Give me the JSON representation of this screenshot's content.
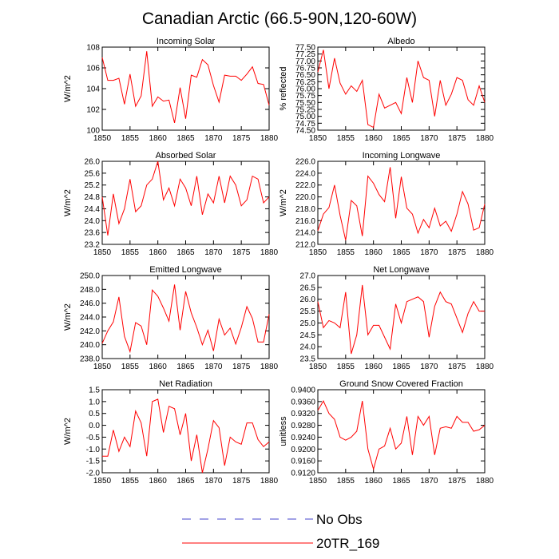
{
  "chart_data": {
    "type": "line",
    "title": "Canadian Arctic (66.5-90N,120-60W)",
    "x_start": 1850,
    "legend": [
      {
        "name": "No Obs",
        "color": "#4444cc",
        "style": "dashed"
      },
      {
        "name": "20TR_169",
        "color": "#ff0000",
        "style": "solid"
      }
    ],
    "panels": [
      {
        "title": "Incoming Solar",
        "ylabel": "W/m^2",
        "ylim": [
          100,
          108
        ],
        "yticks": [
          "100",
          "102",
          "104",
          "106",
          "108"
        ],
        "xlim": [
          1850,
          1880
        ],
        "xticks": [
          "1850",
          "1855",
          "1860",
          "1865",
          "1870",
          "1875",
          "1880"
        ],
        "values": [
          107.0,
          104.8,
          104.8,
          105.0,
          102.5,
          105.4,
          102.3,
          103.3,
          107.6,
          102.3,
          103.2,
          102.8,
          102.9,
          100.7,
          104.1,
          101.1,
          105.3,
          105.1,
          106.8,
          106.3,
          104.3,
          102.7,
          105.3,
          105.2,
          105.2,
          104.8,
          105.4,
          106.1,
          104.5,
          104.4,
          102.4
        ]
      },
      {
        "title": "Albedo",
        "ylabel": "% reflected",
        "ylim": [
          74.5,
          77.5
        ],
        "yticks": [
          "74.50",
          "74.75",
          "75.00",
          "75.25",
          "75.50",
          "75.75",
          "76.00",
          "76.25",
          "76.50",
          "76.75",
          "77.00",
          "77.25",
          "77.50"
        ],
        "xlim": [
          1850,
          1880
        ],
        "xticks": [
          "1850",
          "1855",
          "1860",
          "1865",
          "1870",
          "1875",
          "1880"
        ],
        "values": [
          76.6,
          77.4,
          76.0,
          77.1,
          76.2,
          75.8,
          76.1,
          75.9,
          76.3,
          74.7,
          74.6,
          75.8,
          75.3,
          75.4,
          75.5,
          75.1,
          76.4,
          75.5,
          77.0,
          76.4,
          76.3,
          75.0,
          76.3,
          75.4,
          75.8,
          76.4,
          76.3,
          75.6,
          75.4,
          76.1,
          75.5
        ]
      },
      {
        "title": "Absorbed Solar",
        "ylabel": "W/m^2",
        "ylim": [
          23.2,
          26.0
        ],
        "yticks": [
          "23.2",
          "23.6",
          "24.0",
          "24.4",
          "24.8",
          "25.2",
          "25.6",
          "26.0"
        ],
        "xlim": [
          1850,
          1880
        ],
        "xticks": [
          "1850",
          "1855",
          "1860",
          "1865",
          "1870",
          "1875",
          "1880"
        ],
        "values": [
          24.8,
          23.5,
          24.9,
          23.9,
          24.4,
          25.4,
          24.3,
          24.5,
          25.2,
          25.4,
          26.0,
          24.7,
          25.1,
          24.5,
          25.4,
          25.1,
          24.5,
          25.5,
          24.2,
          24.9,
          24.6,
          25.5,
          24.6,
          25.5,
          25.2,
          24.5,
          24.7,
          25.5,
          25.4,
          24.6,
          24.8
        ]
      },
      {
        "title": "Incoming Longwave",
        "ylabel": "W/m^2",
        "ylim": [
          212,
          226
        ],
        "yticks": [
          "212.0",
          "214.0",
          "216.0",
          "218.0",
          "220.0",
          "222.0",
          "224.0",
          "226.0"
        ],
        "xlim": [
          1850,
          1880
        ],
        "xticks": [
          "1850",
          "1855",
          "1860",
          "1865",
          "1870",
          "1875",
          "1880"
        ],
        "values": [
          214.3,
          217.1,
          218.2,
          222.0,
          216.9,
          212.7,
          219.4,
          218.5,
          213.4,
          223.5,
          222.3,
          220.4,
          219.2,
          225.0,
          216.4,
          223.4,
          218.1,
          217.1,
          213.9,
          216.2,
          214.8,
          218.1,
          215.1,
          215.9,
          214.2,
          217.1,
          220.9,
          218.8,
          214.4,
          214.8,
          218.8
        ]
      },
      {
        "title": "Emitted Longwave",
        "ylabel": "W/m^2",
        "ylim": [
          238,
          250
        ],
        "yticks": [
          "238.0",
          "240.0",
          "242.0",
          "244.0",
          "246.0",
          "248.0",
          "250.0"
        ],
        "xlim": [
          1850,
          1880
        ],
        "xticks": [
          "1850",
          "1855",
          "1860",
          "1865",
          "1870",
          "1875",
          "1880"
        ],
        "values": [
          240.2,
          242.0,
          243.3,
          246.9,
          241.2,
          239.0,
          243.2,
          242.7,
          240.0,
          247.9,
          247.0,
          245.3,
          243.4,
          248.7,
          242.1,
          247.7,
          244.6,
          242.5,
          240.0,
          242.1,
          239.1,
          243.7,
          241.4,
          242.4,
          240.1,
          242.5,
          245.5,
          243.8,
          240.4,
          240.4,
          244.4
        ]
      },
      {
        "title": "Net Longwave",
        "ylabel": "",
        "ylim": [
          23.5,
          27.0
        ],
        "yticks": [
          "23.5",
          "24.0",
          "24.5",
          "25.0",
          "25.5",
          "26.0",
          "26.5",
          "27.0"
        ],
        "xlim": [
          1850,
          1880
        ],
        "xticks": [
          "1850",
          "1855",
          "1860",
          "1865",
          "1870",
          "1875",
          "1880"
        ],
        "values": [
          25.9,
          24.8,
          25.1,
          25.0,
          24.8,
          26.3,
          23.7,
          24.5,
          26.6,
          24.5,
          24.9,
          24.9,
          24.4,
          23.9,
          25.8,
          25.0,
          25.9,
          26.0,
          26.1,
          25.9,
          24.4,
          25.7,
          26.3,
          25.9,
          25.8,
          25.2,
          24.6,
          25.4,
          25.9,
          25.5,
          25.5
        ]
      },
      {
        "title": "Net Radiation",
        "ylabel": "W/m^2",
        "ylim": [
          -2.0,
          1.5
        ],
        "yticks": [
          "-2.0",
          "-1.5",
          "-1.0",
          "-0.5",
          "0.0",
          "0.5",
          "1.0",
          "1.5"
        ],
        "xlim": [
          1850,
          1880
        ],
        "xticks": [
          "1850",
          "1855",
          "1860",
          "1865",
          "1870",
          "1875",
          "1880"
        ],
        "values": [
          -1.3,
          -1.3,
          -0.2,
          -1.1,
          -0.5,
          -0.9,
          0.6,
          0.1,
          -1.3,
          1.0,
          1.1,
          -0.3,
          0.8,
          0.7,
          -0.4,
          0.5,
          -1.5,
          -0.4,
          -2.0,
          -1.0,
          0.2,
          -0.1,
          -1.7,
          -0.5,
          -0.7,
          -0.8,
          0.1,
          0.1,
          -0.6,
          -0.9,
          -0.7
        ]
      },
      {
        "title": "Ground Snow Covered Fraction",
        "ylabel": "unitless",
        "ylim": [
          0.912,
          0.94
        ],
        "yticks": [
          "0.9120",
          "0.9160",
          "0.9200",
          "0.9240",
          "0.9280",
          "0.9320",
          "0.9360",
          "0.9400"
        ],
        "xlim": [
          1850,
          1880
        ],
        "xticks": [
          "1850",
          "1855",
          "1860",
          "1865",
          "1870",
          "1875",
          "1880"
        ],
        "values": [
          0.933,
          0.9362,
          0.932,
          0.93,
          0.924,
          0.923,
          0.924,
          0.926,
          0.9362,
          0.92,
          0.9132,
          0.92,
          0.921,
          0.927,
          0.92,
          0.922,
          0.931,
          0.918,
          0.931,
          0.928,
          0.931,
          0.918,
          0.927,
          0.9275,
          0.927,
          0.931,
          0.929,
          0.929,
          0.926,
          0.9265,
          0.928
        ]
      }
    ]
  }
}
